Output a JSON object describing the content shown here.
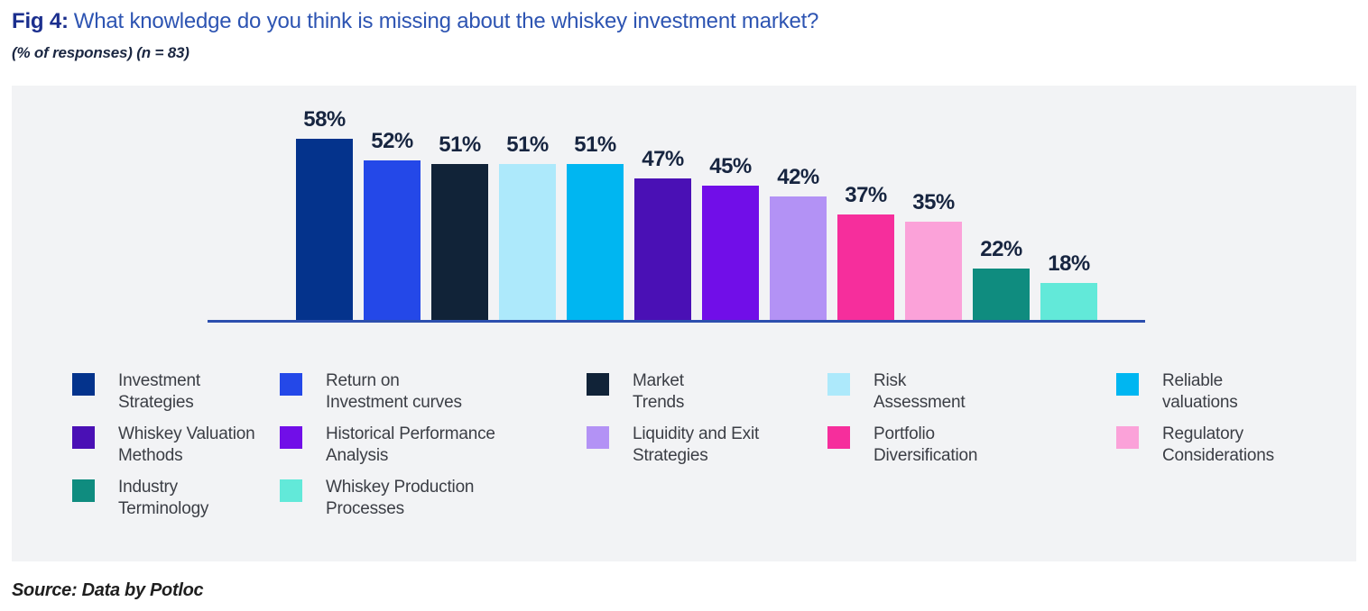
{
  "figure": {
    "fig_label": "Fig 4:",
    "title": "What knowledge do you think is missing about the whiskey investment market?",
    "subtitle": "(% of responses) (n = 83)",
    "source": "Source: Data by Potloc"
  },
  "colors": {
    "fig_label": "#1b2f8e",
    "title": "#2d54b2",
    "subtitle": "#1b2742",
    "value_label": "#172540",
    "panel_bg": "#f2f3f5",
    "axis": "#2c4fae",
    "legend_text": "#3b3e45",
    "source_text": "#1f1f1f"
  },
  "chart_data": {
    "type": "bar",
    "title": "What knowledge do you think is missing about the whiskey investment market?",
    "subtitle": "(% of responses) (n = 83)",
    "unit": "%",
    "n": 83,
    "grid": false,
    "value_axis_visible": false,
    "legend_position": "bottom",
    "categories": [
      "Investment Strategies",
      "Return on Investment curves",
      "Market Trends",
      "Risk Assessment",
      "Reliable valuations",
      "Whiskey Valuation Methods",
      "Historical Performance Analysis",
      "Liquidity and Exit Strategies",
      "Portfolio Diversification",
      "Regulatory Considerations",
      "Industry Terminology",
      "Whiskey Production Processes"
    ],
    "values": [
      58,
      52,
      51,
      51,
      51,
      47,
      45,
      42,
      37,
      35,
      22,
      18
    ],
    "value_labels": [
      "58%",
      "52%",
      "51%",
      "51%",
      "51%",
      "47%",
      "45%",
      "42%",
      "37%",
      "35%",
      "22%",
      "18%"
    ],
    "colors": [
      "#04338c",
      "#2448e8",
      "#112338",
      "#ade9fb",
      "#00b6f1",
      "#4a10b5",
      "#710ee8",
      "#b392f5",
      "#f62e9c",
      "#fba2d9",
      "#0f8c7f",
      "#62e9d9"
    ],
    "legend_labels": [
      "Investment\nStrategies",
      "Return on\nInvestment curves",
      "Market\nTrends",
      "Risk\nAssessment",
      "Reliable\nvaluations",
      "Whiskey Valuation\nMethods",
      "Historical Performance\nAnalysis",
      "Liquidity and Exit\nStrategies",
      "Portfolio\nDiversification",
      "Regulatory\nConsiderations",
      "Industry\nTerminology",
      "Whiskey Production\nProcesses"
    ],
    "source": "Source: Data by Potloc"
  }
}
